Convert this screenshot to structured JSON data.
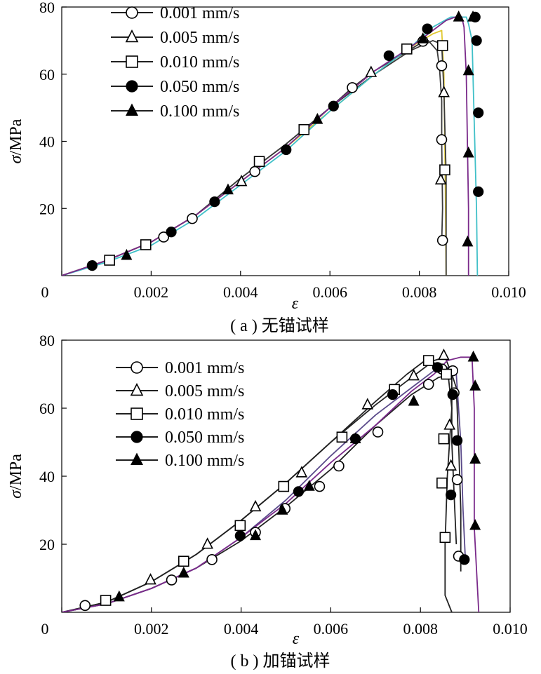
{
  "chart_data": [
    {
      "type": "line",
      "caption": "( a ) 无锚试样",
      "xlabel": "ε",
      "ylabel_symbol": "σ",
      "ylabel_unit": "/MPa",
      "xlim": [
        0,
        0.01
      ],
      "ylim": [
        0,
        80
      ],
      "x_ticks": [
        0,
        0.002,
        0.004,
        0.006,
        0.008,
        0.01
      ],
      "x_tick_labels": [
        "0",
        "0.002",
        "0.004",
        "0.006",
        "0.008",
        "0.010"
      ],
      "y_ticks": [
        20,
        40,
        60,
        80
      ],
      "y_tick_labels": [
        "20",
        "40",
        "60",
        "80"
      ],
      "legend_position": "top-left",
      "series": [
        {
          "name": "0.001 mm/s",
          "marker": "circle-open",
          "color": "#3a3a3a",
          "x": [
            0,
            0.001,
            0.002,
            0.003,
            0.004,
            0.005,
            0.006,
            0.0065,
            0.007,
            0.0075,
            0.008,
            0.0082,
            0.0084,
            0.00845,
            0.0085,
            0.0085,
            0.00852,
            0.0085
          ],
          "y": [
            0,
            4.5,
            10,
            18,
            29,
            39,
            50,
            56,
            61,
            65,
            69,
            70,
            67,
            62,
            52,
            40,
            20,
            10
          ],
          "markers_x": [
            0.00228,
            0.00292,
            0.00432,
            0.0065,
            0.00808,
            0.0085,
            0.0085,
            0.00852
          ],
          "markers_y": [
            11.5,
            17,
            31,
            56,
            69.8,
            62.5,
            40.5,
            10.5
          ]
        },
        {
          "name": "0.005 mm/s",
          "marker": "triangle-open",
          "color": "#e0c830",
          "x": [
            0,
            0.001,
            0.002,
            0.003,
            0.004,
            0.005,
            0.006,
            0.007,
            0.0078,
            0.0083,
            0.0085,
            0.00855,
            0.00858,
            0.0086
          ],
          "y": [
            0,
            4.5,
            10,
            18,
            28,
            38,
            49,
            60,
            68,
            72,
            73,
            60,
            30,
            0
          ],
          "markers_x": [
            0.00402,
            0.00692,
            0.00855,
            0.00848
          ],
          "markers_y": [
            28,
            60.5,
            54.5,
            28.5
          ]
        },
        {
          "name": "0.010 mm/s",
          "marker": "square-open",
          "color": "#3a3a3a",
          "x": [
            0,
            0.001,
            0.002,
            0.003,
            0.004,
            0.005,
            0.006,
            0.007,
            0.0078,
            0.0083,
            0.0085,
            0.00855,
            0.0086,
            0.0086
          ],
          "y": [
            0,
            4.5,
            10,
            18,
            29,
            39,
            50,
            60,
            67,
            70,
            69,
            55,
            30,
            0
          ],
          "markers_x": [
            0.00107,
            0.00188,
            0.00442,
            0.00542,
            0.00772,
            0.00852,
            0.00857
          ],
          "markers_y": [
            4.6,
            9.2,
            34,
            43.5,
            67.5,
            68.5,
            31.5
          ],
          "marker_style": "square"
        },
        {
          "name": "0.050 mm/s",
          "marker": "circle-filled",
          "color": "#40c0c8",
          "x": [
            0,
            0.001,
            0.002,
            0.003,
            0.004,
            0.005,
            0.006,
            0.007,
            0.0078,
            0.0083,
            0.0087,
            0.0089,
            0.00905,
            0.0091,
            0.00918,
            0.00922,
            0.00928,
            0.0093
          ],
          "y": [
            0,
            4,
            9,
            17,
            27,
            37,
            49,
            60,
            68,
            74,
            77,
            77,
            77,
            75,
            70,
            50,
            20,
            0
          ],
          "markers_x": [
            0.00068,
            0.00245,
            0.00342,
            0.00502,
            0.00608,
            0.00732,
            0.00818,
            0.00925,
            0.00928,
            0.00932,
            0.00932
          ],
          "markers_y": [
            3,
            13,
            22,
            37.5,
            50.5,
            65.5,
            73.5,
            77,
            70,
            48.5,
            25
          ]
        },
        {
          "name": "0.100 mm/s",
          "marker": "triangle-filled",
          "color": "#7a2a8a",
          "x": [
            0,
            0.001,
            0.002,
            0.003,
            0.004,
            0.005,
            0.006,
            0.007,
            0.0078,
            0.0083,
            0.0086,
            0.0088,
            0.00895,
            0.009,
            0.00905,
            0.0091,
            0.0091
          ],
          "y": [
            0,
            4.5,
            10,
            18,
            28,
            38,
            50,
            61,
            68,
            73,
            76,
            77,
            77,
            74,
            60,
            20,
            0
          ],
          "markers_x": [
            0.00145,
            0.00372,
            0.00572,
            0.00808,
            0.00888,
            0.0092,
            0.0091,
            0.0091,
            0.00908
          ],
          "markers_y": [
            6,
            25.5,
            46.5,
            70.5,
            77,
            77,
            61,
            36.5,
            10
          ]
        }
      ]
    },
    {
      "type": "line",
      "caption": "( b ) 加锚试样",
      "xlabel": "ε",
      "ylabel_symbol": "σ",
      "ylabel_unit": "/MPa",
      "xlim": [
        0,
        0.01
      ],
      "ylim": [
        0,
        80
      ],
      "x_ticks": [
        0,
        0.002,
        0.004,
        0.006,
        0.008,
        0.01
      ],
      "x_tick_labels": [
        "0",
        "0.002",
        "0.004",
        "0.006",
        "0.008",
        "0.010"
      ],
      "y_ticks": [
        20,
        40,
        60,
        80
      ],
      "y_tick_labels": [
        "20",
        "40",
        "60",
        "80"
      ],
      "legend_position": "top-left",
      "series": [
        {
          "name": "0.001 mm/s",
          "marker": "circle-open",
          "color": "#222222",
          "x": [
            0,
            0.001,
            0.002,
            0.003,
            0.004,
            0.005,
            0.006,
            0.007,
            0.0078,
            0.0084,
            0.0087,
            0.0088,
            0.00885,
            0.0089,
            0.0089
          ],
          "y": [
            0,
            2.5,
            7,
            13,
            21,
            31,
            42,
            55,
            64,
            69,
            70,
            66,
            50,
            30,
            12
          ],
          "markers_x": [
            0.00052,
            0.00245,
            0.00335,
            0.00432,
            0.00498,
            0.00575,
            0.00618,
            0.00705,
            0.00818,
            0.00848,
            0.00872,
            0.00875,
            0.00882,
            0.00885
          ],
          "markers_y": [
            2,
            9.5,
            15.5,
            23.5,
            30.5,
            37,
            43,
            53,
            67,
            71.5,
            71,
            64.5,
            39,
            16.5
          ]
        },
        {
          "name": "0.005 mm/s",
          "marker": "triangle-open",
          "color": "#222222",
          "x": [
            0,
            0.001,
            0.002,
            0.003,
            0.004,
            0.005,
            0.006,
            0.007,
            0.0078,
            0.0083,
            0.00855,
            0.0087,
            0.0087,
            0.00875,
            0.0088
          ],
          "y": [
            0,
            3,
            9,
            17,
            27,
            38,
            50,
            61,
            69,
            74,
            75,
            70,
            50,
            35,
            20
          ],
          "markers_x": [
            0.00198,
            0.00325,
            0.00432,
            0.00535,
            0.00682,
            0.00785,
            0.00852,
            0.00865,
            0.00868
          ],
          "markers_y": [
            9.5,
            20,
            31,
            41,
            61,
            69.5,
            75.5,
            55,
            43
          ]
        },
        {
          "name": "0.010 mm/s",
          "marker": "square-open",
          "color": "#222222",
          "x": [
            0,
            0.001,
            0.002,
            0.003,
            0.004,
            0.005,
            0.006,
            0.007,
            0.0077,
            0.0081,
            0.0084,
            0.0086,
            0.0087,
            0.0086,
            0.00855,
            0.00855,
            0.0087
          ],
          "y": [
            0,
            3,
            9,
            17,
            27,
            38,
            50,
            62,
            70,
            74,
            73,
            72,
            60,
            40,
            20,
            5,
            0
          ],
          "markers_x": [
            0.00098,
            0.00272,
            0.00398,
            0.00495,
            0.00625,
            0.00742,
            0.00818,
            0.00858,
            0.00852,
            0.00848,
            0.00855
          ],
          "markers_y": [
            3.5,
            15,
            25.5,
            37,
            51.5,
            65.5,
            74,
            70,
            51,
            38,
            22
          ]
        },
        {
          "name": "0.050 mm/s",
          "marker": "circle-filled",
          "color": "#5a4a8a",
          "x": [
            0,
            0.001,
            0.002,
            0.003,
            0.004,
            0.005,
            0.006,
            0.007,
            0.0078,
            0.0083,
            0.0086,
            0.0088,
            0.0089,
            0.00895,
            0.009
          ],
          "y": [
            0,
            2.5,
            7,
            13,
            22,
            33,
            46,
            58,
            66,
            71,
            72,
            70,
            50,
            30,
            16
          ],
          "markers_x": [
            0.00398,
            0.00528,
            0.00655,
            0.00738,
            0.00838,
            0.00872,
            0.00868,
            0.00882,
            0.00898
          ],
          "markers_y": [
            22.5,
            35.5,
            51,
            64,
            72,
            64,
            34.5,
            50.5,
            15.5
          ]
        },
        {
          "name": "0.100 mm/s",
          "marker": "triangle-filled",
          "color": "#7a2a8a",
          "x": [
            0,
            0.001,
            0.002,
            0.003,
            0.004,
            0.005,
            0.006,
            0.007,
            0.0078,
            0.0083,
            0.0086,
            0.0089,
            0.00915,
            0.0092,
            0.0092,
            0.0093
          ],
          "y": [
            0,
            2.5,
            7,
            13,
            22,
            32,
            44,
            55,
            65,
            70,
            74,
            75,
            75,
            60,
            25,
            0
          ],
          "markers_x": [
            0.00128,
            0.00272,
            0.00432,
            0.00492,
            0.00552,
            0.00655,
            0.00785,
            0.00918,
            0.00922,
            0.00922,
            0.00922
          ],
          "markers_y": [
            4.5,
            11.5,
            22.5,
            30,
            37,
            51,
            62,
            75,
            66.5,
            25.5,
            45
          ]
        }
      ]
    }
  ]
}
